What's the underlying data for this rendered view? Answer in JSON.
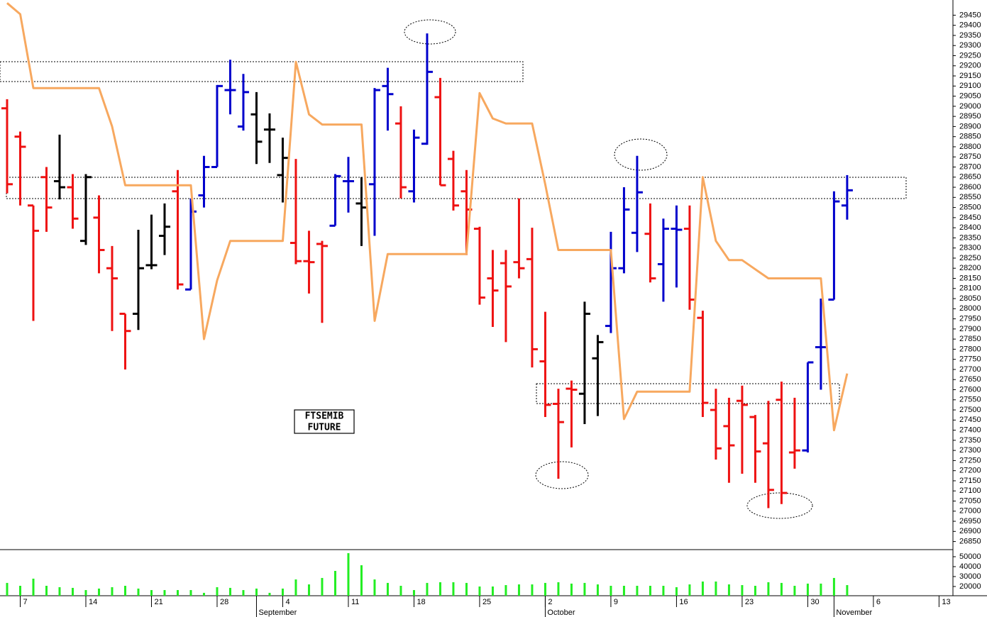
{
  "chart_data": {
    "type": "ohlc",
    "annotation": [
      "FTSEMIB",
      "FUTURE"
    ],
    "xlim": [
      -0.54,
      72.06
    ],
    "xticks": [
      {
        "value": 1,
        "label": "7"
      },
      {
        "value": 6,
        "label": "14"
      },
      {
        "value": 11,
        "label": "21"
      },
      {
        "value": 16,
        "label": "28"
      },
      {
        "value": 21,
        "label": "4"
      },
      {
        "value": 26,
        "label": "11"
      },
      {
        "value": 31,
        "label": "18"
      },
      {
        "value": 36,
        "label": "25"
      },
      {
        "value": 41,
        "label": "2"
      },
      {
        "value": 46,
        "label": "9"
      },
      {
        "value": 51,
        "label": "16"
      },
      {
        "value": 56,
        "label": "23"
      },
      {
        "value": 61,
        "label": "30"
      },
      {
        "value": 66,
        "label": "6"
      },
      {
        "value": 71,
        "label": "13"
      }
    ],
    "month_ticks": [
      {
        "value": 19,
        "label": "September"
      },
      {
        "value": 41,
        "label": "October"
      },
      {
        "value": 63,
        "label": "November"
      }
    ],
    "ylim": [
      26810,
      29525
    ],
    "yticks": [
      26850,
      26900,
      26950,
      27000,
      27050,
      27100,
      27150,
      27200,
      27250,
      27300,
      27350,
      27400,
      27450,
      27500,
      27550,
      27600,
      27650,
      27700,
      27750,
      27800,
      27850,
      27900,
      27950,
      28000,
      28050,
      28100,
      28150,
      28200,
      28250,
      28300,
      28350,
      28400,
      28450,
      28500,
      28550,
      28600,
      28650,
      28700,
      28750,
      28800,
      28850,
      28900,
      28950,
      29000,
      29050,
      29100,
      29150,
      29200,
      29250,
      29300,
      29350,
      29400,
      29450
    ],
    "bars": {
      "open": [
        28990,
        28850,
        28510,
        28650,
        28630,
        28600,
        28335,
        28450,
        28200,
        27975,
        27975,
        28215,
        28360,
        28580,
        28095,
        28560,
        28700,
        29080,
        28900,
        28960,
        28885,
        28660,
        28325,
        28235,
        28320,
        28410,
        28630,
        28520,
        28615,
        29100,
        28915,
        28580,
        28815,
        29045,
        28740,
        28580,
        28395,
        28150,
        28225,
        28230,
        28245,
        27740,
        27530,
        27605,
        27580,
        27755,
        27915,
        28200,
        28375,
        28370,
        28220,
        28395,
        28395,
        27955,
        27500,
        27420,
        27545,
        27465,
        27335,
        27550,
        27290,
        27300,
        27810,
        28045,
        28510
      ],
      "high": [
        29035,
        28875,
        28510,
        28700,
        28860,
        28665,
        28665,
        28560,
        28310,
        27975,
        28390,
        28465,
        28520,
        28685,
        28545,
        28755,
        29105,
        29230,
        29160,
        29070,
        28965,
        28845,
        28740,
        28385,
        28335,
        28665,
        28750,
        28650,
        29090,
        29190,
        29000,
        28885,
        29360,
        29140,
        28780,
        28685,
        28405,
        28290,
        28290,
        28545,
        28400,
        27985,
        27605,
        27645,
        28035,
        27870,
        28380,
        28600,
        28755,
        28520,
        28445,
        28510,
        28510,
        27990,
        27605,
        27560,
        27620,
        27475,
        27545,
        27640,
        27560,
        27735,
        28050,
        28580,
        28660
      ],
      "low": [
        28570,
        28510,
        27940,
        28380,
        28540,
        28395,
        28315,
        28175,
        27890,
        27700,
        27895,
        28195,
        28265,
        28095,
        28095,
        28500,
        28700,
        28960,
        28880,
        28715,
        28720,
        28525,
        28220,
        28075,
        27930,
        28410,
        28475,
        28310,
        28360,
        28880,
        28545,
        28525,
        28810,
        28610,
        28485,
        28265,
        28020,
        27910,
        27835,
        28150,
        27710,
        27465,
        27160,
        27315,
        27430,
        27470,
        27880,
        28175,
        28280,
        28130,
        28035,
        28105,
        27995,
        27465,
        27255,
        27140,
        27185,
        27140,
        27015,
        27035,
        27210,
        27290,
        27600,
        28045,
        28440
      ],
      "close": [
        28615,
        28800,
        28385,
        28500,
        28600,
        28445,
        28650,
        28290,
        28150,
        27890,
        28200,
        28215,
        28405,
        28120,
        28480,
        28700,
        29100,
        29080,
        29070,
        28825,
        28885,
        28745,
        28235,
        28230,
        28310,
        28655,
        28630,
        28500,
        29080,
        29060,
        28600,
        28845,
        29170,
        28610,
        28510,
        28490,
        28055,
        28090,
        28110,
        28200,
        27800,
        27525,
        27440,
        27600,
        27975,
        27835,
        28200,
        28490,
        28575,
        28150,
        28395,
        28390,
        28045,
        27535,
        27310,
        27325,
        27525,
        27295,
        27105,
        27090,
        27300,
        27735,
        27810,
        28530,
        28585
      ],
      "colors": [
        "#ee1111",
        "#ee1111",
        "#ee1111",
        "#ee1111",
        "#000000",
        "#ee1111",
        "#000000",
        "#ee1111",
        "#ee1111",
        "#ee1111",
        "#000000",
        "#000000",
        "#000000",
        "#ee1111",
        "#0000cc",
        "#0000cc",
        "#0000cc",
        "#0000cc",
        "#0000cc",
        "#000000",
        "#000000",
        "#000000",
        "#ee1111",
        "#ee1111",
        "#ee1111",
        "#0000cc",
        "#0000cc",
        "#000000",
        "#0000cc",
        "#0000cc",
        "#ee1111",
        "#0000cc",
        "#0000cc",
        "#ee1111",
        "#ee1111",
        "#ee1111",
        "#ee1111",
        "#ee1111",
        "#ee1111",
        "#ee1111",
        "#ee1111",
        "#ee1111",
        "#ee1111",
        "#ee1111",
        "#000000",
        "#000000",
        "#0000cc",
        "#0000cc",
        "#0000cc",
        "#ee1111",
        "#0000cc",
        "#0000cc",
        "#ee1111",
        "#ee1111",
        "#ee1111",
        "#ee1111",
        "#ee1111",
        "#ee1111",
        "#ee1111",
        "#ee1111",
        "#ee1111",
        "#0000cc",
        "#0000cc",
        "#0000cc",
        "#0000cc"
      ]
    },
    "line": {
      "color": "#f7a85f",
      "values": [
        29510,
        29455,
        29090,
        29090,
        29090,
        29090,
        29090,
        29090,
        28900,
        28610,
        28610,
        28610,
        28610,
        28610,
        28610,
        27850,
        28140,
        28335,
        28335,
        28335,
        28335,
        28335,
        29220,
        28960,
        28910,
        28910,
        28910,
        28910,
        27940,
        28270,
        28270,
        28270,
        28270,
        28270,
        28270,
        28270,
        29065,
        28940,
        28915,
        28915,
        28915,
        28615,
        28290,
        28290,
        28290,
        28290,
        28290,
        27455,
        27590,
        27590,
        27590,
        27590,
        27590,
        28650,
        28335,
        28240,
        28240,
        28195,
        28150,
        28150,
        28150,
        28150,
        28150,
        27400,
        27680
      ]
    },
    "volume": {
      "color": "#22ee22",
      "ylim": [
        10700,
        55700
      ],
      "yticks": [
        20000,
        30000,
        40000,
        50000
      ],
      "values": [
        23600,
        20700,
        27900,
        20700,
        19300,
        18600,
        16400,
        17900,
        19300,
        20700,
        17900,
        16400,
        16400,
        16400,
        16400,
        13600,
        19300,
        18600,
        16400,
        17900,
        13600,
        17900,
        27100,
        22100,
        28600,
        35700,
        53600,
        41400,
        27100,
        23600,
        20700,
        16400,
        23600,
        24300,
        24300,
        23600,
        20000,
        20000,
        21400,
        22100,
        22100,
        23600,
        24300,
        22900,
        23600,
        22100,
        20700,
        20700,
        20700,
        20700,
        20700,
        19300,
        22100,
        25000,
        25000,
        22100,
        21400,
        20700,
        24300,
        23600,
        20700,
        22900,
        22900,
        28600,
        21400
      ]
    }
  }
}
